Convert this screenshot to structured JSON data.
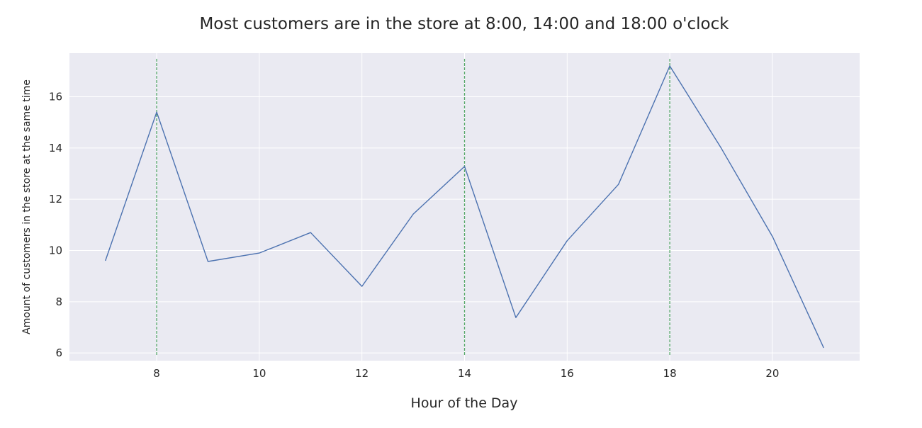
{
  "chart_data": {
    "type": "line",
    "title": "Most customers are in the store at 8:00, 14:00 and 18:00 o'clock",
    "xlabel": "Hour of the Day",
    "ylabel": "Amount of customers in the store at the same time",
    "x": [
      7,
      8,
      9,
      10,
      11,
      12,
      13,
      14,
      15,
      16,
      17,
      18,
      19,
      20,
      21
    ],
    "series": [
      {
        "values": [
          9.6,
          15.4,
          9.57,
          9.9,
          10.7,
          8.6,
          11.42,
          13.28,
          7.38,
          10.38,
          12.58,
          17.2,
          14.0,
          10.55,
          6.2
        ]
      }
    ],
    "highlight_x": [
      8,
      14,
      18
    ],
    "xlim": [
      6.3,
      21.7
    ],
    "ylim": [
      5.7,
      17.7
    ],
    "xticks": [
      8,
      10,
      12,
      14,
      16,
      18,
      20
    ],
    "yticks": [
      6,
      8,
      10,
      12,
      14,
      16
    ],
    "grid": true,
    "colors": {
      "background": "#eaeaf2",
      "grid": "#ffffff",
      "line": "#4c72b0",
      "highlight": "#55a868"
    }
  }
}
